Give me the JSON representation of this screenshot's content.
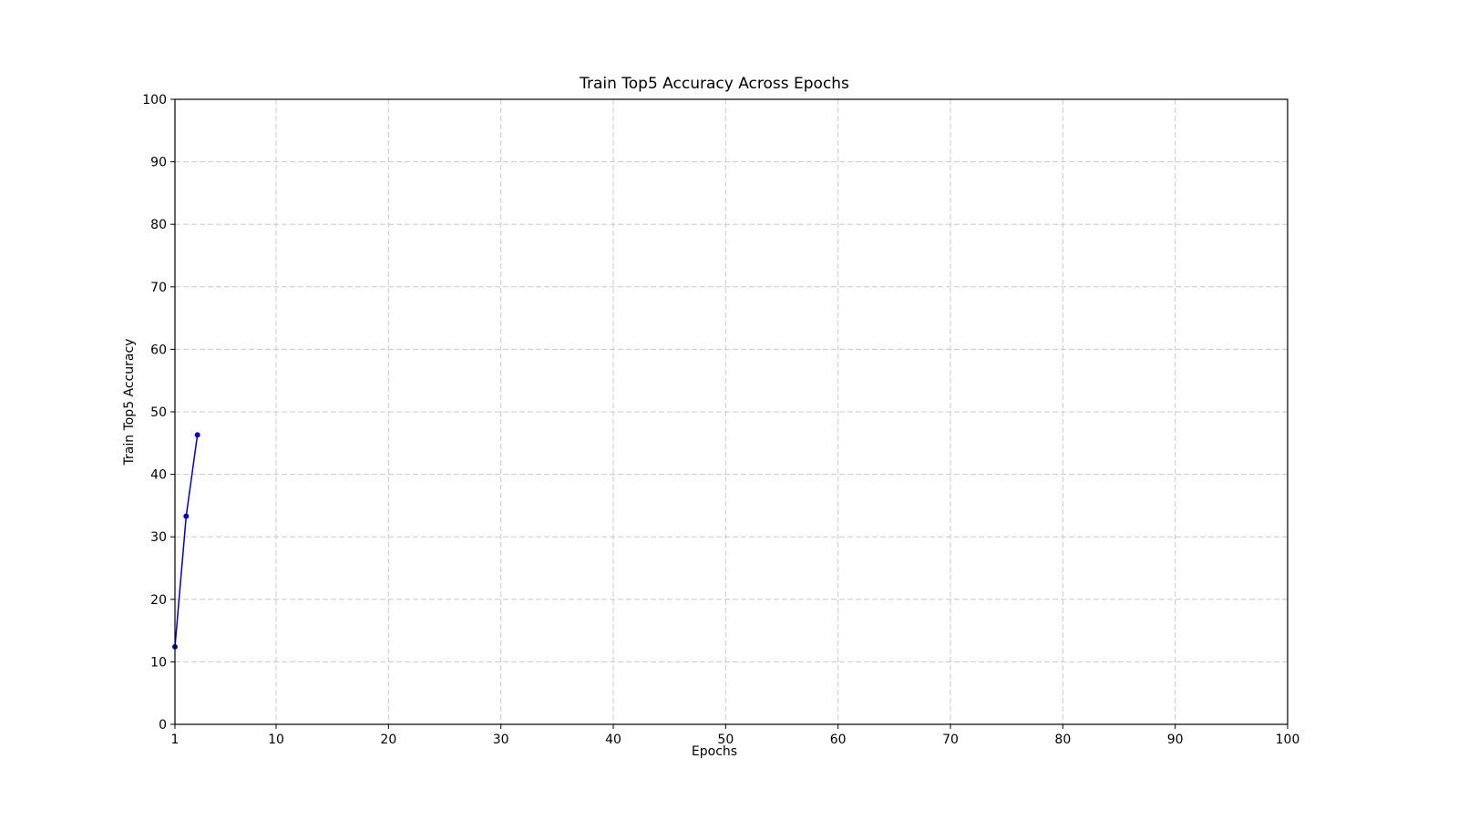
{
  "chart_data": {
    "type": "line",
    "title": "Train Top5 Accuracy Across Epochs",
    "xlabel": "Epochs",
    "ylabel": "Train Top5 Accuracy",
    "xlim": [
      1,
      100
    ],
    "ylim": [
      0,
      100
    ],
    "xticks": [
      1,
      10,
      20,
      30,
      40,
      50,
      60,
      70,
      80,
      90,
      100
    ],
    "yticks": [
      0,
      10,
      20,
      30,
      40,
      50,
      60,
      70,
      80,
      90,
      100
    ],
    "grid": true,
    "series": [
      {
        "color": "#0000cc",
        "marker": "circle",
        "x": [
          1,
          2,
          3
        ],
        "y": [
          12.4,
          33.3,
          46.3
        ]
      }
    ]
  }
}
